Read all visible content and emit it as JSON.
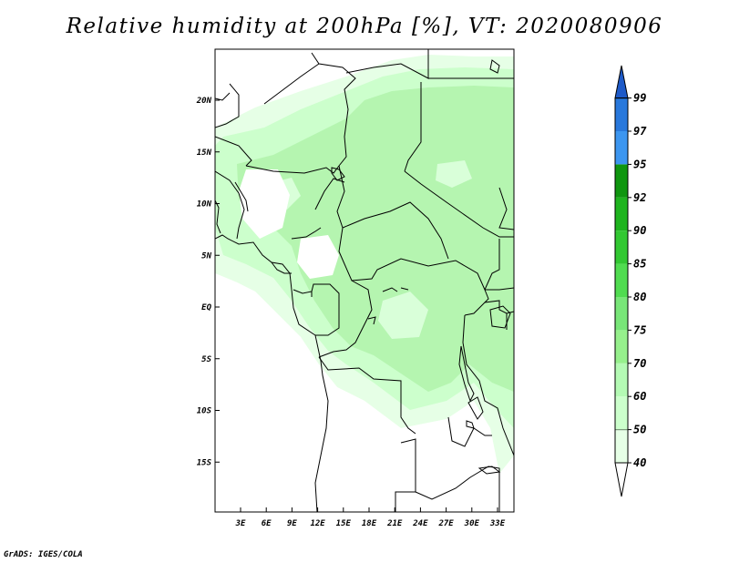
{
  "title": "Relative humidity at 200hPa [%], VT: 2020080906",
  "credit": "GrADS: IGES/COLA",
  "map": {
    "lat_range": [
      -20,
      25
    ],
    "lon_range": [
      0,
      35
    ],
    "lat_ticks": [
      {
        "value": 20,
        "label": "20N"
      },
      {
        "value": 15,
        "label": "15N"
      },
      {
        "value": 10,
        "label": "10N"
      },
      {
        "value": 5,
        "label": "5N"
      },
      {
        "value": 0,
        "label": "EQ"
      },
      {
        "value": -5,
        "label": "5S"
      },
      {
        "value": -10,
        "label": "10S"
      },
      {
        "value": -15,
        "label": "15S"
      }
    ],
    "lon_ticks": [
      {
        "value": 3,
        "label": "3E"
      },
      {
        "value": 6,
        "label": "6E"
      },
      {
        "value": 9,
        "label": "9E"
      },
      {
        "value": 12,
        "label": "12E"
      },
      {
        "value": 15,
        "label": "15E"
      },
      {
        "value": 18,
        "label": "18E"
      },
      {
        "value": 21,
        "label": "21E"
      },
      {
        "value": 24,
        "label": "24E"
      },
      {
        "value": 27,
        "label": "27E"
      },
      {
        "value": 30,
        "label": "30E"
      },
      {
        "value": 33,
        "label": "33E"
      }
    ],
    "field_colors": {
      "band_40_50": "#e6ffe6",
      "band_50_60": "#ccffcc",
      "band_60_70": "#b5f5b0"
    },
    "border_color": "#000000"
  },
  "colorbar": {
    "levels": [
      "40",
      "50",
      "60",
      "70",
      "75",
      "80",
      "85",
      "90",
      "92",
      "95",
      "97",
      "99"
    ],
    "colors": [
      "#e6ffe6",
      "#ccffcc",
      "#b4fab4",
      "#96f08c",
      "#78e678",
      "#50dc50",
      "#32c832",
      "#1eb41e",
      "#0f960f",
      "#3c96f0",
      "#2878dc",
      "#1e5ac8"
    ]
  }
}
